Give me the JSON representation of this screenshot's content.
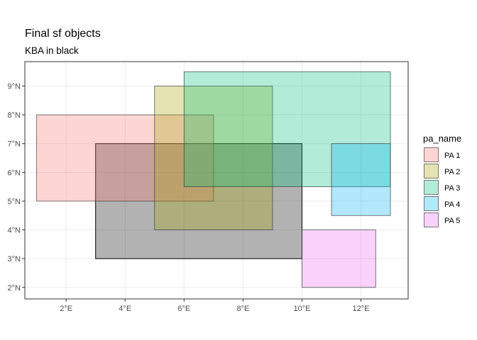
{
  "chart_data": {
    "type": "map",
    "title": "Final sf objects",
    "subtitle": "KBA in black",
    "xlim": [
      0.6,
      13.6
    ],
    "ylim": [
      1.6,
      9.85
    ],
    "x_ticks": [
      {
        "value": 2,
        "label": "2°E"
      },
      {
        "value": 4,
        "label": "4°E"
      },
      {
        "value": 6,
        "label": "6°E"
      },
      {
        "value": 8,
        "label": "8°E"
      },
      {
        "value": 10,
        "label": "10°E"
      },
      {
        "value": 12,
        "label": "12°E"
      }
    ],
    "y_ticks": [
      {
        "value": 2,
        "label": "2°N"
      },
      {
        "value": 3,
        "label": "3°N"
      },
      {
        "value": 4,
        "label": "4°N"
      },
      {
        "value": 5,
        "label": "5°N"
      },
      {
        "value": 6,
        "label": "6°N"
      },
      {
        "value": 7,
        "label": "7°N"
      },
      {
        "value": 8,
        "label": "8°N"
      },
      {
        "value": 9,
        "label": "9°N"
      }
    ],
    "grid": true,
    "kba": {
      "fill": "#000000",
      "opacity": 0.3,
      "rects": [
        {
          "xmin": 3,
          "xmax": 10,
          "ymin": 3,
          "ymax": 7
        }
      ]
    },
    "series": [
      {
        "name": "PA 1",
        "color": "#F8766D",
        "rects": [
          {
            "xmin": 1,
            "xmax": 7,
            "ymin": 5,
            "ymax": 8
          }
        ]
      },
      {
        "name": "PA 2",
        "color": "#A3A500",
        "rects": [
          {
            "xmin": 5,
            "xmax": 9,
            "ymin": 4,
            "ymax": 9
          }
        ]
      },
      {
        "name": "PA 3",
        "color": "#00BF7D",
        "rects": [
          {
            "xmin": 6,
            "xmax": 13,
            "ymin": 5.5,
            "ymax": 9.5
          }
        ]
      },
      {
        "name": "PA 4",
        "color": "#00B0F6",
        "rects": [
          {
            "xmin": 11,
            "xmax": 13,
            "ymin": 4.5,
            "ymax": 7
          }
        ]
      },
      {
        "name": "PA 5",
        "color": "#E76BF3",
        "rects": [
          {
            "xmin": 10,
            "xmax": 12.5,
            "ymin": 2,
            "ymax": 4
          }
        ]
      }
    ],
    "legend": {
      "title": "pa_name",
      "position": "right"
    }
  }
}
